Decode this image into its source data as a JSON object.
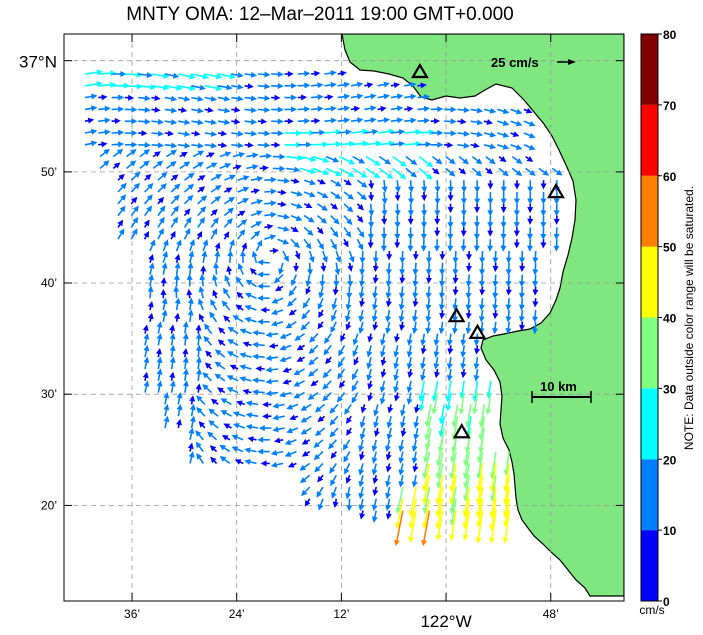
{
  "title": "MNTY OMA: 12–Mar–2011 19:00 GMT+0.000",
  "axes": {
    "lat_ticks": [
      {
        "label": "37°N",
        "lat": 37.0,
        "big": true
      },
      {
        "label": "50’",
        "lat": 36.8333
      },
      {
        "label": "40’",
        "lat": 36.6667
      },
      {
        "label": "30’",
        "lat": 36.5
      },
      {
        "label": "20’",
        "lat": 36.3333
      }
    ],
    "lon_ticks": [
      {
        "label": "36’",
        "lon": -122.6
      },
      {
        "label": "24’",
        "lon": -122.4
      },
      {
        "label": "12’",
        "lon": -122.2
      },
      {
        "label": "122°W",
        "lon": -122.0,
        "big": true
      },
      {
        "label": "48’",
        "lon": -121.8
      }
    ],
    "lon_range": [
      -122.73,
      -121.66
    ],
    "lat_range": [
      36.19,
      37.04
    ],
    "grid": true
  },
  "reference_vector": {
    "label": "25 cm/s",
    "speed": 25
  },
  "scale_bar": {
    "label": "10 km",
    "km": 10
  },
  "colorbar": {
    "ticks": [
      "0",
      "10",
      "20",
      "30",
      "40",
      "50",
      "60",
      "70",
      "80"
    ],
    "unit": "cm/s",
    "note": "NOTE: Data outside color range will be saturated.",
    "bins": [
      {
        "from": 0,
        "to": 10,
        "color": "#0000ff"
      },
      {
        "from": 10,
        "to": 20,
        "color": "#0080ff"
      },
      {
        "from": 20,
        "to": 30,
        "color": "#00ffff"
      },
      {
        "from": 30,
        "to": 40,
        "color": "#80ff80"
      },
      {
        "from": 40,
        "to": 50,
        "color": "#ffff00"
      },
      {
        "from": 50,
        "to": 60,
        "color": "#ff8000"
      },
      {
        "from": 60,
        "to": 70,
        "color": "#ff0000"
      },
      {
        "from": 70,
        "to": 80,
        "color": "#800000"
      }
    ]
  },
  "colors": {
    "land": "#80e680",
    "coast": "#000000",
    "grid": "#999999"
  },
  "stations": [
    {
      "lon": -122.05,
      "lat": 36.983
    },
    {
      "lon": -121.79,
      "lat": 36.803
    },
    {
      "lon": -121.98,
      "lat": 36.617
    },
    {
      "lon": -121.94,
      "lat": 36.592
    },
    {
      "lon": -121.97,
      "lat": 36.443
    }
  ]
}
